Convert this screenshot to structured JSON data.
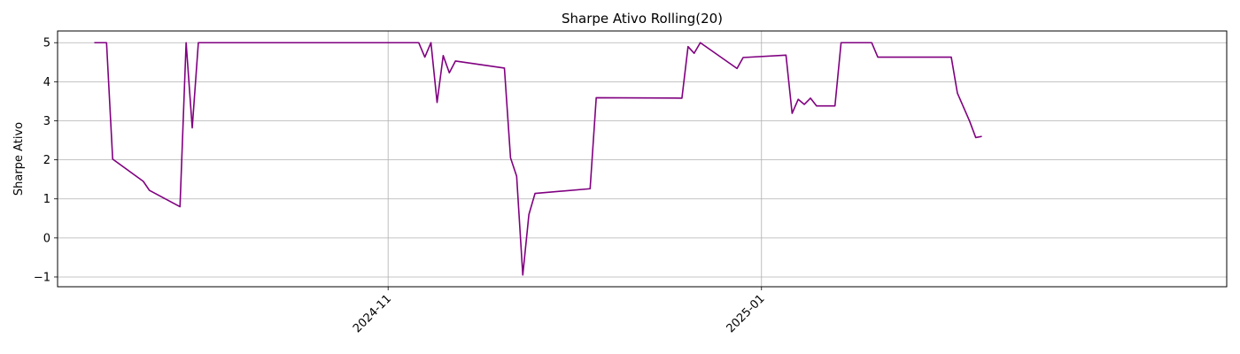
{
  "chart_data": {
    "type": "line",
    "title": "Sharpe Ativo Rolling(20)",
    "xlabel": "",
    "ylabel": "Sharpe Ativo",
    "x_axis_type": "date",
    "xlim": [
      "2024-09-08",
      "2025-03-18"
    ],
    "ylim": [
      -1.25,
      5.3
    ],
    "grid": true,
    "x_ticks": [
      "2024-11-01",
      "2025-01-01"
    ],
    "x_tick_labels": [
      "2024-11",
      "2025-01"
    ],
    "y_ticks": [
      -1,
      0,
      1,
      2,
      3,
      4,
      5
    ],
    "y_tick_labels": [
      "−1",
      "0",
      "1",
      "2",
      "3",
      "4",
      "5"
    ],
    "series": [
      {
        "color": "#800080",
        "points": [
          [
            "2024-09-14",
            5.0
          ],
          [
            "2024-09-16",
            5.0
          ],
          [
            "2024-09-17",
            2.02
          ],
          [
            "2024-09-22",
            1.45
          ],
          [
            "2024-09-23",
            1.22
          ],
          [
            "2024-09-28",
            0.8
          ],
          [
            "2024-09-29",
            5.0
          ],
          [
            "2024-09-30",
            2.82
          ],
          [
            "2024-10-01",
            5.0
          ],
          [
            "2024-11-06",
            5.0
          ],
          [
            "2024-11-07",
            4.63
          ],
          [
            "2024-11-08",
            5.0
          ],
          [
            "2024-11-09",
            3.47
          ],
          [
            "2024-11-10",
            4.67
          ],
          [
            "2024-11-11",
            4.23
          ],
          [
            "2024-11-12",
            4.53
          ],
          [
            "2024-11-20",
            4.35
          ],
          [
            "2024-11-21",
            2.05
          ],
          [
            "2024-11-22",
            1.58
          ],
          [
            "2024-11-23",
            -0.95
          ],
          [
            "2024-11-24",
            0.6
          ],
          [
            "2024-11-25",
            1.14
          ],
          [
            "2024-12-04",
            1.26
          ],
          [
            "2024-12-05",
            3.59
          ],
          [
            "2024-12-19",
            3.58
          ],
          [
            "2024-12-20",
            4.9
          ],
          [
            "2024-12-21",
            4.73
          ],
          [
            "2024-12-22",
            5.0
          ],
          [
            "2024-12-28",
            4.34
          ],
          [
            "2024-12-29",
            4.62
          ],
          [
            "2025-01-05",
            4.68
          ],
          [
            "2025-01-06",
            3.19
          ],
          [
            "2025-01-07",
            3.55
          ],
          [
            "2025-01-08",
            3.42
          ],
          [
            "2025-01-09",
            3.58
          ],
          [
            "2025-01-10",
            3.38
          ],
          [
            "2025-01-13",
            3.38
          ],
          [
            "2025-01-14",
            5.0
          ],
          [
            "2025-01-19",
            5.0
          ],
          [
            "2025-01-20",
            4.63
          ],
          [
            "2025-02-01",
            4.63
          ],
          [
            "2025-02-02",
            3.71
          ],
          [
            "2025-02-04",
            2.99
          ],
          [
            "2025-02-05",
            2.57
          ],
          [
            "2025-02-06",
            2.6
          ]
        ]
      }
    ]
  }
}
